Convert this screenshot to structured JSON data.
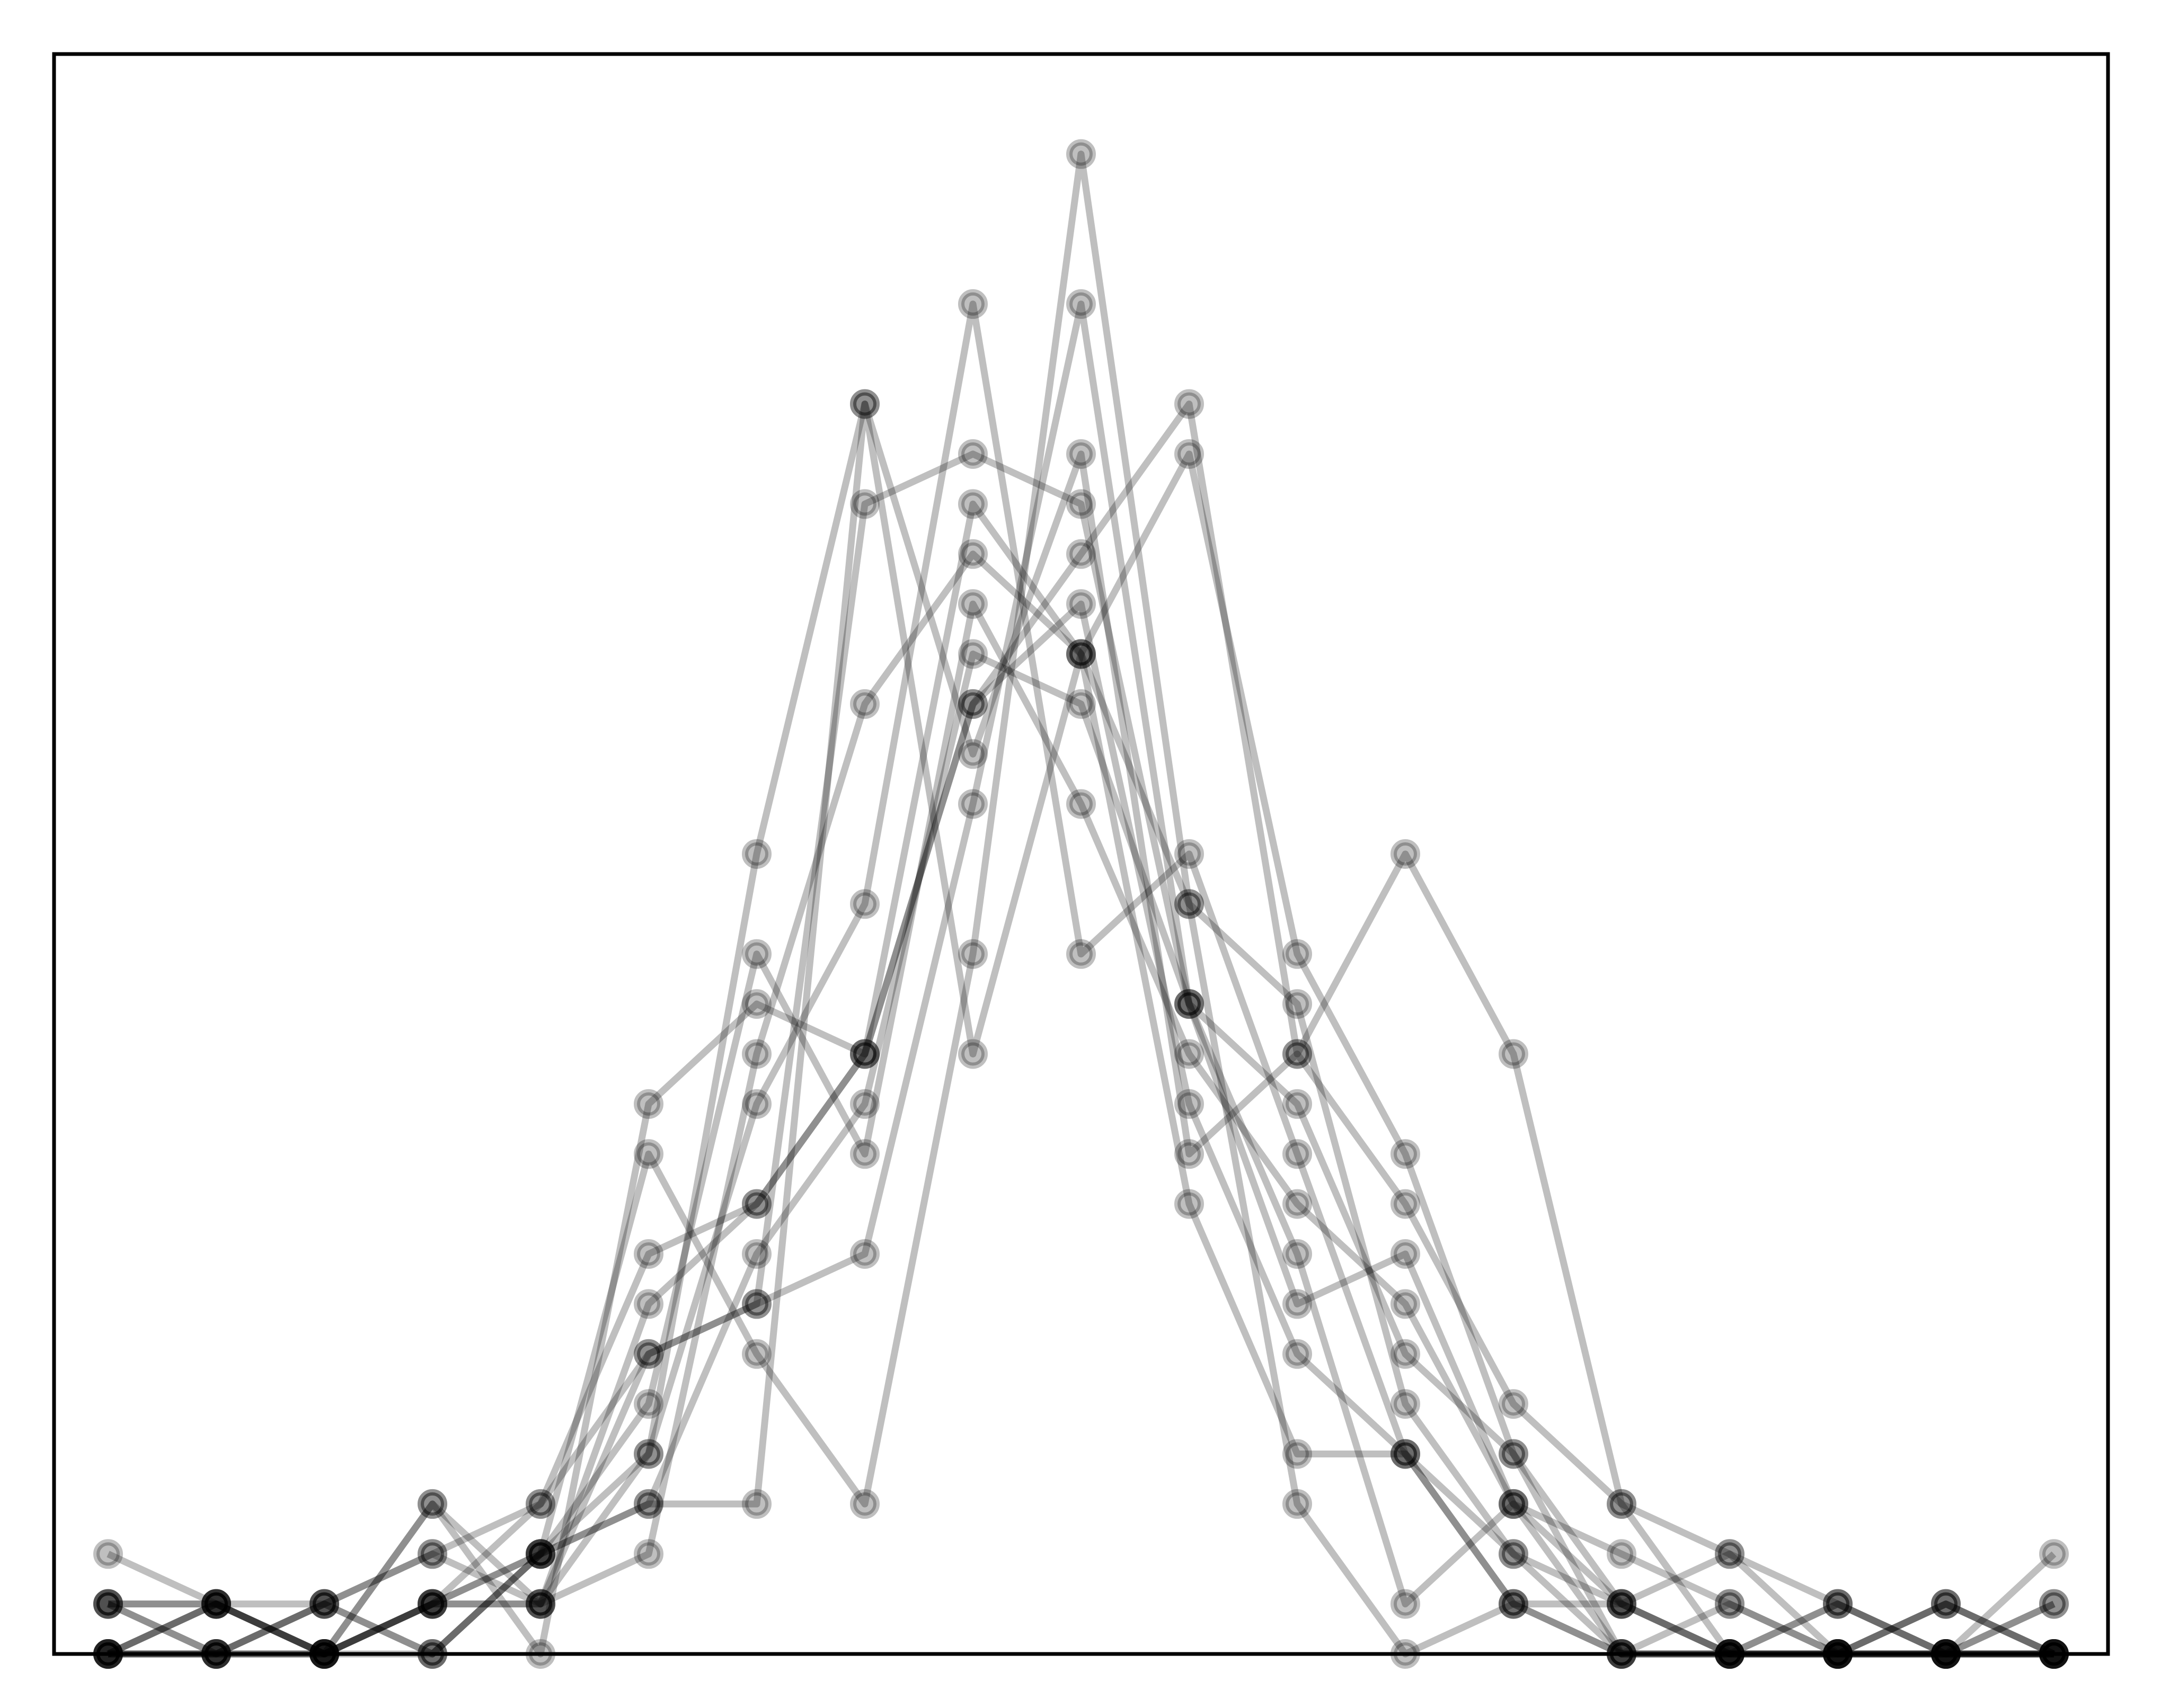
{
  "chart_data": {
    "type": "line",
    "title": "",
    "xlabel": "",
    "ylabel": "",
    "x": [
      0,
      1,
      2,
      3,
      4,
      5,
      6,
      7,
      8,
      9,
      10,
      11,
      12,
      13,
      14,
      15,
      16,
      17,
      18
    ],
    "xlim": [
      -0.5,
      18.5
    ],
    "ylim": [
      0,
      32
    ],
    "grid": false,
    "legend": "none",
    "ticks": "none",
    "line_color": "#000000",
    "line_opacity": 0.25,
    "series": [
      {
        "values": [
          1,
          1,
          1,
          0,
          2,
          3,
          3,
          25,
          12,
          20,
          24,
          14,
          10,
          4,
          0,
          0,
          0,
          0,
          0
        ]
      },
      {
        "values": [
          0,
          0,
          0,
          3,
          1,
          4,
          16,
          25,
          18,
          24,
          10,
          12,
          9,
          5,
          3,
          0,
          0,
          0,
          0
        ]
      },
      {
        "values": [
          2,
          1,
          0,
          1,
          2,
          10,
          6,
          3,
          14,
          30,
          15,
          13,
          5,
          2,
          1,
          0,
          0,
          0,
          1
        ]
      },
      {
        "values": [
          1,
          1,
          0,
          1,
          1,
          2,
          12,
          19,
          22,
          20,
          15,
          3,
          0,
          1,
          0,
          0,
          0,
          0,
          0
        ]
      },
      {
        "values": [
          0,
          0,
          1,
          2,
          1,
          6,
          7,
          8,
          17,
          27,
          13,
          7,
          8,
          3,
          1,
          2,
          1,
          0,
          2
        ]
      },
      {
        "values": [
          0,
          1,
          0,
          3,
          0,
          11,
          13,
          12,
          19,
          22,
          25,
          12,
          16,
          12,
          3,
          2,
          0,
          1,
          0
        ]
      },
      {
        "values": [
          0,
          0,
          0,
          1,
          3,
          6,
          7,
          23,
          24,
          23,
          13,
          8,
          1,
          3,
          0,
          0,
          0,
          1,
          0
        ]
      },
      {
        "values": [
          1,
          0,
          1,
          2,
          3,
          8,
          9,
          12,
          19,
          21,
          11,
          6,
          4,
          1,
          1,
          0,
          1,
          0,
          0
        ]
      },
      {
        "values": [
          0,
          1,
          0,
          0,
          2,
          4,
          11,
          15,
          27,
          14,
          16,
          10,
          4,
          2,
          0,
          1,
          0,
          0,
          0
        ]
      },
      {
        "values": [
          0,
          0,
          0,
          1,
          2,
          3,
          8,
          11,
          20,
          19,
          13,
          11,
          6,
          4,
          1,
          0,
          0,
          1,
          0
        ]
      },
      {
        "values": [
          1,
          0,
          1,
          0,
          2,
          5,
          14,
          10,
          21,
          17,
          12,
          9,
          7,
          3,
          2,
          1,
          0,
          0,
          1
        ]
      },
      {
        "values": [
          0,
          1,
          0,
          1,
          1,
          7,
          9,
          12,
          23,
          20,
          9,
          4,
          4,
          1,
          0,
          0,
          1,
          0,
          0
        ]
      }
    ]
  }
}
